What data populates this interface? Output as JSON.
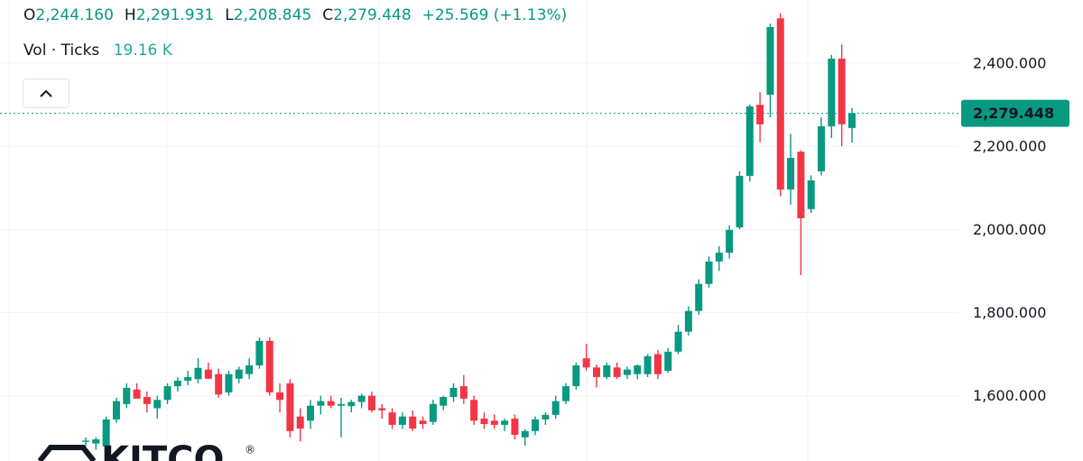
{
  "chart_data": {
    "type": "candlestick",
    "legend": [
      {
        "label": "O",
        "value": "2,244.160"
      },
      {
        "label": "H",
        "value": "2,291.931"
      },
      {
        "label": "L",
        "value": "2,208.845"
      },
      {
        "label": "C",
        "value": "2,279.448"
      }
    ],
    "change": "+25.569 (+1.13%)",
    "volume_label": "Vol · Ticks",
    "volume_value": "19.16 K",
    "logo": "KITCO",
    "logo_mark": "®",
    "up_color": "#089981",
    "down_color": "#f23645",
    "grid": true,
    "ylim": [
      1443,
      2552
    ],
    "yticks": [
      {
        "value": 1600,
        "label": "1,600.000"
      },
      {
        "value": 1800,
        "label": "1,800.000"
      },
      {
        "value": 2000,
        "label": "2,000.000"
      },
      {
        "value": 2200,
        "label": "2,200.000"
      },
      {
        "value": 2400,
        "label": "2,400.000"
      }
    ],
    "last_price": {
      "value": 2279.448,
      "label": "2,279.448"
    },
    "open": [
      1489,
      1485,
      1478,
      1543,
      1580,
      1615,
      1597,
      1570,
      1590,
      1623,
      1636,
      1640,
      1663,
      1652,
      1608,
      1641,
      1652,
      1673,
      1732,
      1608,
      1630,
      1550,
      1540,
      1576,
      1587,
      1576,
      1575,
      1585,
      1600,
      1570,
      1560,
      1530,
      1550,
      1540,
      1537,
      1576,
      1597,
      1623,
      1590,
      1545,
      1540,
      1530,
      1545,
      1500,
      1515,
      1543,
      1554,
      1587,
      1623,
      1690,
      1668,
      1645,
      1668,
      1650,
      1652,
      1652,
      1700,
      1660,
      1706,
      1754,
      1804,
      1869,
      1923,
      1944,
      2005,
      2129,
      2300,
      2324,
      2508,
      2096,
      2187,
      2049,
      2140,
      2248,
      2411,
      2244.16
    ],
    "high": [
      1500,
      1500,
      1550,
      1595,
      1630,
      1630,
      1610,
      1600,
      1630,
      1645,
      1660,
      1690,
      1680,
      1665,
      1660,
      1670,
      1690,
      1740,
      1740,
      1630,
      1640,
      1570,
      1590,
      1600,
      1600,
      1595,
      1590,
      1605,
      1610,
      1580,
      1570,
      1560,
      1565,
      1550,
      1590,
      1600,
      1630,
      1650,
      1600,
      1560,
      1555,
      1545,
      1555,
      1520,
      1550,
      1560,
      1600,
      1630,
      1680,
      1725,
      1675,
      1680,
      1680,
      1670,
      1675,
      1700,
      1710,
      1715,
      1770,
      1815,
      1880,
      1935,
      1960,
      2010,
      2140,
      2300,
      2330,
      2495,
      2520,
      2230,
      2190,
      2130,
      2270,
      2420,
      2445,
      2291.931
    ],
    "low": [
      1478,
      1470,
      1470,
      1535,
      1570,
      1600,
      1560,
      1545,
      1580,
      1610,
      1625,
      1630,
      1640,
      1595,
      1600,
      1630,
      1640,
      1665,
      1600,
      1560,
      1500,
      1490,
      1520,
      1555,
      1570,
      1500,
      1560,
      1570,
      1560,
      1545,
      1520,
      1520,
      1515,
      1520,
      1530,
      1565,
      1585,
      1580,
      1530,
      1520,
      1520,
      1515,
      1495,
      1480,
      1505,
      1530,
      1545,
      1580,
      1615,
      1660,
      1620,
      1640,
      1640,
      1640,
      1640,
      1645,
      1640,
      1655,
      1700,
      1745,
      1795,
      1860,
      1900,
      1930,
      2000,
      2115,
      2210,
      2270,
      2080,
      2060,
      1890,
      2040,
      2130,
      2220,
      2200,
      2208.845
    ],
    "close": [
      1492,
      1495,
      1543,
      1587,
      1619,
      1593,
      1580,
      1590,
      1623,
      1636,
      1645,
      1667,
      1641,
      1603,
      1652,
      1663,
      1673,
      1732,
      1608,
      1590,
      1515,
      1521,
      1576,
      1587,
      1576,
      1580,
      1585,
      1600,
      1565,
      1565,
      1530,
      1550,
      1521,
      1532,
      1580,
      1597,
      1619,
      1593,
      1540,
      1532,
      1530,
      1540,
      1506,
      1515,
      1543,
      1554,
      1587,
      1623,
      1673,
      1668,
      1645,
      1673,
      1645,
      1663,
      1673,
      1695,
      1652,
      1706,
      1754,
      1804,
      1869,
      1923,
      1944,
      1999,
      2129,
      2296,
      2253,
      2487,
      2096,
      2172,
      2027,
      2118,
      2248,
      2411,
      2253,
      2279.448
    ]
  }
}
